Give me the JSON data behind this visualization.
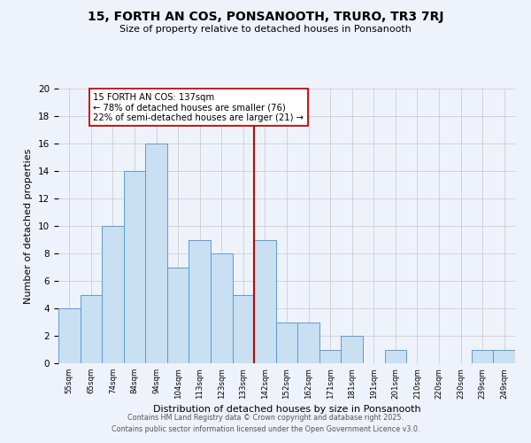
{
  "title": "15, FORTH AN COS, PONSANOOTH, TRURO, TR3 7RJ",
  "subtitle": "Size of property relative to detached houses in Ponsanooth",
  "xlabel": "Distribution of detached houses by size in Ponsanooth",
  "ylabel": "Number of detached properties",
  "bin_labels": [
    "55sqm",
    "65sqm",
    "74sqm",
    "84sqm",
    "94sqm",
    "104sqm",
    "113sqm",
    "123sqm",
    "133sqm",
    "142sqm",
    "152sqm",
    "162sqm",
    "171sqm",
    "181sqm",
    "191sqm",
    "201sqm",
    "210sqm",
    "220sqm",
    "230sqm",
    "239sqm",
    "249sqm"
  ],
  "bar_heights": [
    4,
    5,
    10,
    14,
    16,
    7,
    9,
    8,
    5,
    9,
    3,
    3,
    1,
    2,
    0,
    1,
    0,
    0,
    0,
    1,
    1
  ],
  "bar_color": "#c9dff2",
  "bar_edge_color": "#5b9bd5",
  "vline_x": 8.5,
  "vline_color": "#cc0000",
  "ylim": [
    0,
    20
  ],
  "yticks": [
    0,
    2,
    4,
    6,
    8,
    10,
    12,
    14,
    16,
    18,
    20
  ],
  "annotation_text": "15 FORTH AN COS: 137sqm\n← 78% of detached houses are smaller (76)\n22% of semi-detached houses are larger (21) →",
  "annotation_box_color": "#ffffff",
  "annotation_box_edge": "#cc0000",
  "footer_line1": "Contains HM Land Registry data © Crown copyright and database right 2025.",
  "footer_line2": "Contains public sector information licensed under the Open Government Licence v3.0.",
  "background_color": "#eef2fb",
  "grid_color": "#c8c8c8"
}
